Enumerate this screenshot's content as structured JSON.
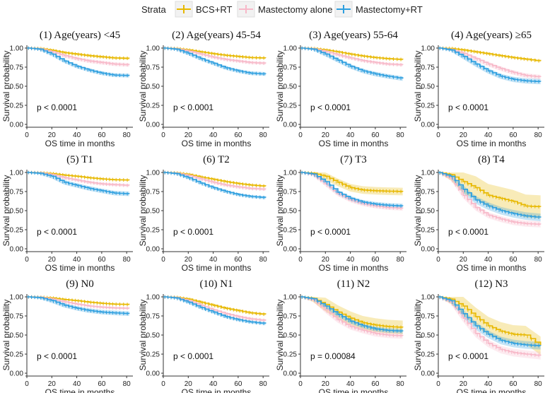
{
  "legend": {
    "title": "Strata",
    "entries": [
      {
        "name": "BCS+RT",
        "color": "#E7B800"
      },
      {
        "name": "Mastectomy alone",
        "color": "#F7B8C8"
      },
      {
        "name": "Mastectomy+RT",
        "color": "#2E9FDF"
      }
    ]
  },
  "chart_data": [
    {
      "type": "line",
      "title": "(1) Age(years) <45",
      "xlabel": "OS time in months",
      "ylabel": "Survival probability",
      "xlim": [
        0,
        85
      ],
      "ylim": [
        0,
        1
      ],
      "xticks": [
        0,
        20,
        40,
        60,
        80
      ],
      "yticks": [
        "0.00",
        "0.25",
        "0.50",
        "0.75",
        "1.00"
      ],
      "pvalue": "p < 0.0001",
      "x": [
        0,
        10,
        20,
        30,
        40,
        50,
        60,
        70,
        82
      ],
      "series": [
        {
          "name": "BCS+RT",
          "values": [
            1,
            0.995,
            0.97,
            0.94,
            0.92,
            0.9,
            0.885,
            0.87,
            0.865
          ],
          "ci": 0.015
        },
        {
          "name": "Mastectomy alone",
          "values": [
            1,
            0.99,
            0.95,
            0.9,
            0.86,
            0.83,
            0.81,
            0.79,
            0.78
          ],
          "ci": 0.025
        },
        {
          "name": "Mastectomy+RT",
          "values": [
            1,
            0.985,
            0.92,
            0.83,
            0.76,
            0.71,
            0.67,
            0.645,
            0.64
          ],
          "ci": 0.025
        }
      ]
    },
    {
      "type": "line",
      "title": "(2) Age(years) 45-54",
      "xlabel": "OS time in months",
      "ylabel": "Survival probability",
      "xlim": [
        0,
        85
      ],
      "ylim": [
        0,
        1
      ],
      "xticks": [
        0,
        20,
        40,
        60,
        80
      ],
      "yticks": [
        "0.00",
        "0.25",
        "0.50",
        "0.75",
        "1.00"
      ],
      "pvalue": "p < 0.0001",
      "x": [
        0,
        10,
        20,
        30,
        40,
        50,
        60,
        70,
        82
      ],
      "series": [
        {
          "name": "BCS+RT",
          "values": [
            1,
            0.995,
            0.975,
            0.95,
            0.925,
            0.905,
            0.89,
            0.875,
            0.87
          ],
          "ci": 0.012
        },
        {
          "name": "Mastectomy alone",
          "values": [
            1,
            0.99,
            0.96,
            0.92,
            0.88,
            0.85,
            0.83,
            0.81,
            0.8
          ],
          "ci": 0.02
        },
        {
          "name": "Mastectomy+RT",
          "values": [
            1,
            0.985,
            0.93,
            0.86,
            0.8,
            0.74,
            0.7,
            0.67,
            0.66
          ],
          "ci": 0.025
        }
      ]
    },
    {
      "type": "line",
      "title": "(3) Age(years) 55-64",
      "xlabel": "OS time in months",
      "ylabel": "Survival probability",
      "xlim": [
        0,
        85
      ],
      "ylim": [
        0,
        1
      ],
      "xticks": [
        0,
        20,
        40,
        60,
        80
      ],
      "yticks": [
        "0.00",
        "0.25",
        "0.50",
        "0.75",
        "1.00"
      ],
      "pvalue": "p < 0.0001",
      "x": [
        0,
        10,
        20,
        30,
        40,
        50,
        60,
        70,
        82
      ],
      "series": [
        {
          "name": "BCS+RT",
          "values": [
            1,
            0.995,
            0.975,
            0.95,
            0.92,
            0.895,
            0.875,
            0.86,
            0.85
          ],
          "ci": 0.012
        },
        {
          "name": "Mastectomy alone",
          "values": [
            1,
            0.99,
            0.955,
            0.91,
            0.87,
            0.835,
            0.81,
            0.79,
            0.78
          ],
          "ci": 0.02
        },
        {
          "name": "Mastectomy+RT",
          "values": [
            1,
            0.985,
            0.92,
            0.84,
            0.76,
            0.7,
            0.66,
            0.63,
            0.6
          ],
          "ci": 0.03
        }
      ]
    },
    {
      "type": "line",
      "title": "(4) Age(years) ≥65",
      "xlabel": "OS time in months",
      "ylabel": "Survival probability",
      "xlim": [
        0,
        85
      ],
      "ylim": [
        0,
        1
      ],
      "xticks": [
        0,
        20,
        40,
        60,
        80
      ],
      "yticks": [
        "0.00",
        "0.25",
        "0.50",
        "0.75",
        "1.00"
      ],
      "pvalue": "p < 0.0001",
      "x": [
        0,
        10,
        20,
        30,
        40,
        50,
        60,
        70,
        82
      ],
      "series": [
        {
          "name": "BCS+RT",
          "values": [
            1,
            0.995,
            0.975,
            0.95,
            0.925,
            0.9,
            0.875,
            0.855,
            0.83
          ],
          "ci": 0.015
        },
        {
          "name": "Mastectomy alone",
          "values": [
            1,
            0.98,
            0.93,
            0.86,
            0.79,
            0.73,
            0.68,
            0.64,
            0.62
          ],
          "ci": 0.03
        },
        {
          "name": "Mastectomy+RT",
          "values": [
            1,
            0.975,
            0.89,
            0.79,
            0.7,
            0.63,
            0.59,
            0.57,
            0.56
          ],
          "ci": 0.035
        }
      ]
    },
    {
      "type": "line",
      "title": "(5) T1",
      "xlabel": "OS time in months",
      "ylabel": "Survival probability",
      "xlim": [
        0,
        85
      ],
      "ylim": [
        0,
        1
      ],
      "xticks": [
        0,
        20,
        40,
        60,
        80
      ],
      "yticks": [
        "0.00",
        "0.25",
        "0.50",
        "0.75",
        "1.00"
      ],
      "pvalue": "p < 0.0001",
      "x": [
        0,
        10,
        20,
        30,
        40,
        50,
        60,
        70,
        82
      ],
      "series": [
        {
          "name": "BCS+RT",
          "values": [
            1,
            0.997,
            0.985,
            0.965,
            0.95,
            0.93,
            0.915,
            0.905,
            0.9
          ],
          "ci": 0.01
        },
        {
          "name": "Mastectomy alone",
          "values": [
            1,
            0.995,
            0.97,
            0.93,
            0.9,
            0.87,
            0.85,
            0.84,
            0.83
          ],
          "ci": 0.02
        },
        {
          "name": "Mastectomy+RT",
          "values": [
            1,
            0.99,
            0.95,
            0.87,
            0.83,
            0.79,
            0.76,
            0.73,
            0.72
          ],
          "ci": 0.03
        }
      ]
    },
    {
      "type": "line",
      "title": "(6) T2",
      "xlabel": "OS time in months",
      "ylabel": "Survival probability",
      "xlim": [
        0,
        85
      ],
      "ylim": [
        0,
        1
      ],
      "xticks": [
        0,
        20,
        40,
        60,
        80
      ],
      "yticks": [
        "0.00",
        "0.25",
        "0.50",
        "0.75",
        "1.00"
      ],
      "pvalue": "p < 0.0001",
      "x": [
        0,
        10,
        20,
        30,
        40,
        50,
        60,
        70,
        82
      ],
      "series": [
        {
          "name": "BCS+RT",
          "values": [
            1,
            0.995,
            0.975,
            0.94,
            0.91,
            0.88,
            0.855,
            0.835,
            0.82
          ],
          "ci": 0.012
        },
        {
          "name": "Mastectomy alone",
          "values": [
            1,
            0.99,
            0.96,
            0.915,
            0.87,
            0.835,
            0.81,
            0.79,
            0.78
          ],
          "ci": 0.02
        },
        {
          "name": "Mastectomy+RT",
          "values": [
            1,
            0.985,
            0.93,
            0.86,
            0.8,
            0.75,
            0.71,
            0.685,
            0.67
          ],
          "ci": 0.02
        }
      ]
    },
    {
      "type": "line",
      "title": "(7) T3",
      "xlabel": "OS time in months",
      "ylabel": "Survival probability",
      "xlim": [
        0,
        85
      ],
      "ylim": [
        0,
        1
      ],
      "xticks": [
        0,
        20,
        40,
        60,
        80
      ],
      "yticks": [
        "0.00",
        "0.25",
        "0.50",
        "0.75",
        "1.00"
      ],
      "pvalue": "p < 0.0001",
      "x": [
        0,
        10,
        20,
        30,
        40,
        50,
        60,
        70,
        82
      ],
      "series": [
        {
          "name": "BCS+RT",
          "values": [
            1,
            0.99,
            0.95,
            0.87,
            0.8,
            0.77,
            0.76,
            0.755,
            0.75
          ],
          "ci": 0.05
        },
        {
          "name": "Mastectomy alone",
          "values": [
            1,
            0.97,
            0.85,
            0.72,
            0.64,
            0.59,
            0.56,
            0.54,
            0.53
          ],
          "ci": 0.03
        },
        {
          "name": "Mastectomy+RT",
          "values": [
            1,
            0.98,
            0.88,
            0.74,
            0.66,
            0.61,
            0.585,
            0.57,
            0.56
          ],
          "ci": 0.03
        }
      ]
    },
    {
      "type": "line",
      "title": "(8) T4",
      "xlabel": "OS time in months",
      "ylabel": "Survival probability",
      "xlim": [
        0,
        85
      ],
      "ylim": [
        0,
        1
      ],
      "xticks": [
        0,
        20,
        40,
        60,
        80
      ],
      "yticks": [
        "0.00",
        "0.25",
        "0.50",
        "0.75",
        "1.00"
      ],
      "pvalue": "p < 0.0001",
      "x": [
        0,
        10,
        20,
        30,
        40,
        50,
        60,
        70,
        82
      ],
      "series": [
        {
          "name": "BCS+RT",
          "values": [
            1,
            0.97,
            0.88,
            0.8,
            0.7,
            0.66,
            0.62,
            0.56,
            0.55
          ],
          "ci": 0.15
        },
        {
          "name": "Mastectomy alone",
          "values": [
            1,
            0.92,
            0.7,
            0.54,
            0.44,
            0.39,
            0.35,
            0.33,
            0.32
          ],
          "ci": 0.04
        },
        {
          "name": "Mastectomy+RT",
          "values": [
            1,
            0.95,
            0.78,
            0.64,
            0.56,
            0.5,
            0.46,
            0.43,
            0.41
          ],
          "ci": 0.05
        }
      ]
    },
    {
      "type": "line",
      "title": "(9) N0",
      "xlabel": "OS time in months",
      "ylabel": "Survival probability",
      "xlim": [
        0,
        85
      ],
      "ylim": [
        0,
        1
      ],
      "xticks": [
        0,
        20,
        40,
        60,
        80
      ],
      "yticks": [
        "0.00",
        "0.25",
        "0.50",
        "0.75",
        "1.00"
      ],
      "pvalue": "p < 0.0001",
      "x": [
        0,
        10,
        20,
        30,
        40,
        50,
        60,
        70,
        82
      ],
      "series": [
        {
          "name": "BCS+RT",
          "values": [
            1,
            0.997,
            0.985,
            0.965,
            0.95,
            0.93,
            0.915,
            0.905,
            0.9
          ],
          "ci": 0.01
        },
        {
          "name": "Mastectomy alone",
          "values": [
            1,
            0.995,
            0.97,
            0.935,
            0.905,
            0.88,
            0.865,
            0.855,
            0.85
          ],
          "ci": 0.015
        },
        {
          "name": "Mastectomy+RT",
          "values": [
            1,
            0.99,
            0.95,
            0.89,
            0.85,
            0.82,
            0.8,
            0.79,
            0.78
          ],
          "ci": 0.03
        }
      ]
    },
    {
      "type": "line",
      "title": "(10) N1",
      "xlabel": "OS time in months",
      "ylabel": "Survival probability",
      "xlim": [
        0,
        85
      ],
      "ylim": [
        0,
        1
      ],
      "xticks": [
        0,
        20,
        40,
        60,
        80
      ],
      "yticks": [
        "0.00",
        "0.25",
        "0.50",
        "0.75",
        "1.00"
      ],
      "pvalue": "p < 0.0001",
      "x": [
        0,
        10,
        20,
        30,
        40,
        50,
        60,
        70,
        82
      ],
      "series": [
        {
          "name": "BCS+RT",
          "values": [
            1,
            0.995,
            0.97,
            0.93,
            0.89,
            0.85,
            0.82,
            0.79,
            0.77
          ],
          "ci": 0.015
        },
        {
          "name": "Mastectomy alone",
          "values": [
            1,
            0.99,
            0.95,
            0.89,
            0.83,
            0.78,
            0.74,
            0.71,
            0.69
          ],
          "ci": 0.02
        },
        {
          "name": "Mastectomy+RT",
          "values": [
            1,
            0.985,
            0.93,
            0.86,
            0.8,
            0.74,
            0.7,
            0.67,
            0.65
          ],
          "ci": 0.02
        }
      ]
    },
    {
      "type": "line",
      "title": "(11) N2",
      "xlabel": "OS time in months",
      "ylabel": "Survival probability",
      "xlim": [
        0,
        85
      ],
      "ylim": [
        0,
        1
      ],
      "xticks": [
        0,
        20,
        40,
        60,
        80
      ],
      "yticks": [
        "0.00",
        "0.25",
        "0.50",
        "0.75",
        "1.00"
      ],
      "pvalue": "p = 0.00084",
      "x": [
        0,
        10,
        20,
        30,
        40,
        50,
        60,
        70,
        82
      ],
      "series": [
        {
          "name": "BCS+RT",
          "values": [
            1,
            0.98,
            0.9,
            0.8,
            0.72,
            0.66,
            0.63,
            0.61,
            0.6
          ],
          "ci": 0.09
        },
        {
          "name": "Mastectomy alone",
          "values": [
            1,
            0.96,
            0.83,
            0.7,
            0.61,
            0.56,
            0.52,
            0.5,
            0.49
          ],
          "ci": 0.04
        },
        {
          "name": "Mastectomy+RT",
          "values": [
            1,
            0.975,
            0.88,
            0.77,
            0.68,
            0.62,
            0.58,
            0.56,
            0.55
          ],
          "ci": 0.03
        }
      ]
    },
    {
      "type": "line",
      "title": "(12) N3",
      "xlabel": "OS time in months",
      "ylabel": "Survival probability",
      "xlim": [
        0,
        85
      ],
      "ylim": [
        0,
        1
      ],
      "xticks": [
        0,
        20,
        40,
        60,
        80
      ],
      "yticks": [
        "0.00",
        "0.25",
        "0.50",
        "0.75",
        "1.00"
      ],
      "pvalue": "p < 0.0001",
      "x": [
        0,
        10,
        20,
        30,
        40,
        50,
        60,
        70,
        82
      ],
      "series": [
        {
          "name": "BCS+RT",
          "values": [
            1,
            0.97,
            0.88,
            0.74,
            0.62,
            0.55,
            0.51,
            0.5,
            0.36
          ],
          "ci": 0.12
        },
        {
          "name": "Mastectomy alone",
          "values": [
            1,
            0.93,
            0.72,
            0.52,
            0.39,
            0.31,
            0.27,
            0.25,
            0.23
          ],
          "ci": 0.05
        },
        {
          "name": "Mastectomy+RT",
          "values": [
            1,
            0.95,
            0.78,
            0.62,
            0.51,
            0.43,
            0.39,
            0.37,
            0.36
          ],
          "ci": 0.05
        }
      ]
    }
  ]
}
